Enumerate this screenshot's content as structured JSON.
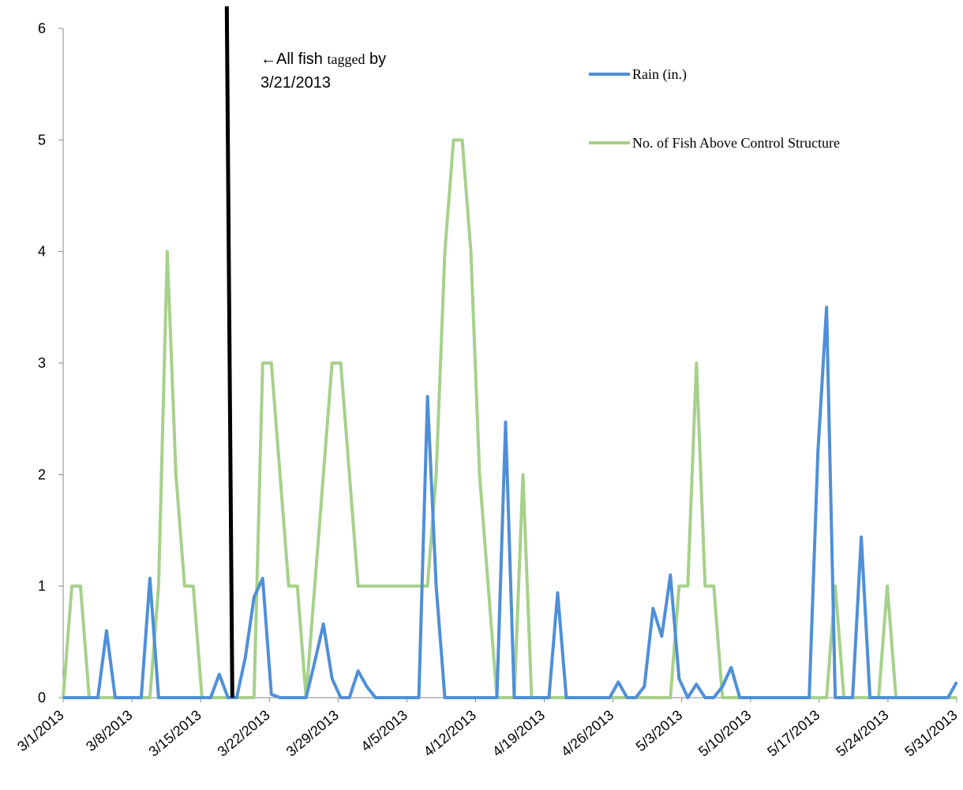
{
  "chart_data": {
    "type": "line",
    "title": "",
    "xlabel": "",
    "ylabel": "",
    "ylim": [
      0,
      6
    ],
    "y_ticks": [
      "0",
      "1",
      "2",
      "3",
      "4",
      "5",
      "6"
    ],
    "x_tick_labels": [
      "3/1/2013",
      "3/8/2013",
      "3/15/2013",
      "3/22/2013",
      "3/29/2013",
      "4/5/2013",
      "4/12/2013",
      "4/19/2013",
      "4/26/2013",
      "5/3/2013",
      "5/10/2013",
      "5/17/2013",
      "5/24/2013",
      "5/31/2013"
    ],
    "x_start": "3/1/2013",
    "legend_position": "top-right",
    "grid": false,
    "series": [
      {
        "name": "Rain (in.)",
        "color": "#4f8fd8",
        "values": [
          0,
          0,
          0,
          0,
          0,
          0.6,
          0,
          0,
          0,
          0,
          1.07,
          0,
          0,
          0,
          0,
          0,
          0,
          0,
          0.21,
          0,
          0,
          0.36,
          0.9,
          1.07,
          0.03,
          0,
          0,
          0,
          0,
          0.32,
          0.66,
          0.17,
          0,
          0,
          0.24,
          0.1,
          0,
          0,
          0,
          0,
          0,
          0,
          2.7,
          1.0,
          0,
          0,
          0,
          0,
          0,
          0,
          0,
          2.47,
          0,
          0,
          0,
          0,
          0,
          0.94,
          0,
          0,
          0,
          0,
          0,
          0,
          0.14,
          0,
          0,
          0.1,
          0.8,
          0.55,
          1.1,
          0.17,
          0,
          0.12,
          0,
          0,
          0.1,
          0.27,
          0,
          0,
          0,
          0,
          0,
          0,
          0,
          0,
          0,
          2.2,
          3.5,
          0,
          0,
          0,
          1.44,
          0,
          0,
          0,
          0,
          0,
          0,
          0,
          0,
          0,
          0,
          0.14
        ]
      },
      {
        "name": "No. of Fish Above Control Structure",
        "color": "#a6d18a",
        "values": [
          0,
          1,
          1,
          0,
          0,
          0,
          0,
          0,
          0,
          0,
          0,
          1,
          4,
          2,
          1,
          1,
          0,
          0,
          0,
          0,
          0,
          0,
          0,
          3,
          3,
          2,
          1,
          1,
          0,
          1,
          2,
          3,
          3,
          2,
          1,
          1,
          1,
          1,
          1,
          1,
          1,
          1,
          1,
          2,
          4,
          5,
          5,
          4,
          2,
          1,
          0,
          0,
          0,
          2,
          0,
          0,
          0,
          0,
          0,
          0,
          0,
          0,
          0,
          0,
          0,
          0,
          0,
          0,
          0,
          0,
          0,
          1,
          1,
          3,
          1,
          1,
          0,
          0,
          0,
          0,
          0,
          0,
          0,
          0,
          0,
          0,
          0,
          0,
          0,
          1,
          0,
          0,
          0,
          0,
          0,
          1,
          0,
          0,
          0,
          0,
          0,
          0,
          0,
          0
        ]
      }
    ],
    "annotation": {
      "arrow": "←",
      "line1_a": "All fish ",
      "line1_b": "tagged",
      "line1_c": " by",
      "line2": "3/21/2013",
      "x_index": 19.5
    }
  }
}
